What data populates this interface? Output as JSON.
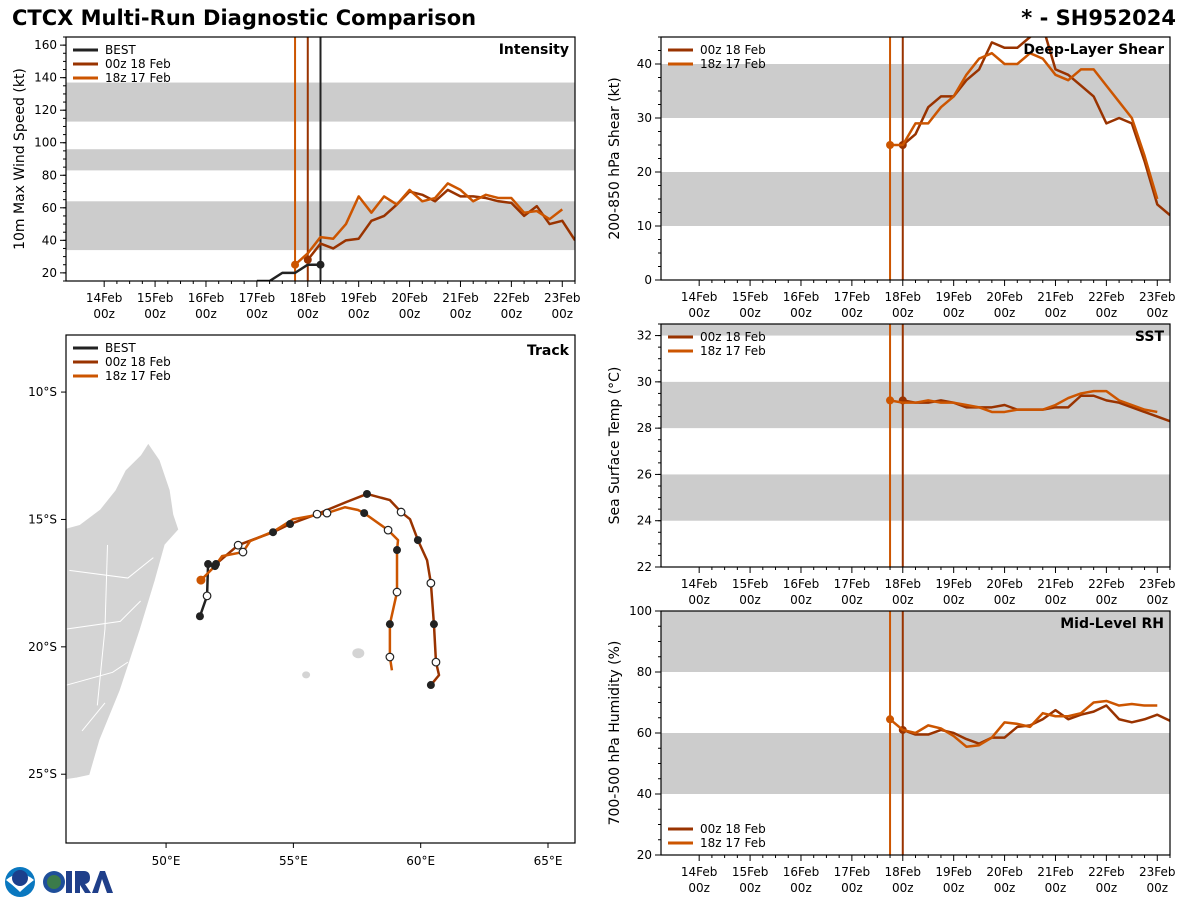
{
  "header": {
    "title": "CTCX Multi-Run Diagnostic Comparison",
    "storm": "* - SH952024"
  },
  "colors": {
    "best": "#222222",
    "run_00z18": "#993300",
    "run_18z17": "#cc5500",
    "band": "#cccccc",
    "land": "#d4d4d4"
  },
  "logo": {
    "text": "CIRA",
    "icon": "noaa-cira-logo"
  },
  "chart_data": [
    {
      "id": "intensity",
      "type": "line",
      "title": "Intensity",
      "ylabel": "10m Max Wind Speed (kt)",
      "ylim": [
        15,
        165
      ],
      "yticks": [
        20,
        40,
        60,
        80,
        100,
        120,
        140,
        160
      ],
      "xlim": [
        "2024-02-13T06Z",
        "2024-02-23T06Z"
      ],
      "xticks": [
        "14Feb\n00z",
        "15Feb\n00z",
        "16Feb\n00z",
        "17Feb\n00z",
        "18Feb\n00z",
        "19Feb\n00z",
        "20Feb\n00z",
        "21Feb\n00z",
        "22Feb\n00z",
        "23Feb\n00z"
      ],
      "bands": [
        [
          34,
          64
        ],
        [
          83,
          96
        ],
        [
          113,
          137
        ]
      ],
      "legend": "top-left",
      "init_lines": [
        {
          "series": "18z 17 Feb",
          "time": "2024-02-17T18Z"
        },
        {
          "series": "00z 18 Feb",
          "time": "2024-02-18T00Z"
        },
        {
          "series": "BEST",
          "time": "2024-02-18T06Z"
        }
      ],
      "series": [
        {
          "name": "BEST",
          "color_key": "best",
          "start": "2024-02-17T00Z",
          "step_hours": 6,
          "values": [
            15,
            15,
            20,
            20,
            25,
            25
          ]
        },
        {
          "name": "00z 18 Feb",
          "color_key": "run_00z18",
          "start": "2024-02-18T00Z",
          "step_hours": 6,
          "values": [
            28,
            38,
            35,
            40,
            41,
            52,
            55,
            62,
            70,
            68,
            64,
            71,
            67,
            67,
            66,
            64,
            63,
            55,
            61,
            50,
            52,
            40
          ]
        },
        {
          "name": "18z 17 Feb",
          "color_key": "run_18z17",
          "start": "2024-02-17T18Z",
          "step_hours": 6,
          "values": [
            25,
            32,
            42,
            41,
            50,
            67,
            57,
            67,
            62,
            71,
            64,
            66,
            75,
            71,
            64,
            68,
            66,
            66,
            57,
            58,
            53,
            59
          ]
        }
      ]
    },
    {
      "id": "shear",
      "type": "line",
      "title": "Deep-Layer Shear",
      "ylabel": "200-850 hPa Shear (kt)",
      "ylim": [
        0,
        45
      ],
      "yticks": [
        0,
        10,
        20,
        30,
        40
      ],
      "xlim": [
        "2024-02-13T06Z",
        "2024-02-23T06Z"
      ],
      "xticks": [
        "14Feb\n00z",
        "15Feb\n00z",
        "16Feb\n00z",
        "17Feb\n00z",
        "18Feb\n00z",
        "19Feb\n00z",
        "20Feb\n00z",
        "21Feb\n00z",
        "22Feb\n00z",
        "23Feb\n00z"
      ],
      "bands": [
        [
          10,
          20
        ],
        [
          30,
          40
        ]
      ],
      "legend": "top-left",
      "init_lines": [
        {
          "series": "18z 17 Feb",
          "time": "2024-02-17T18Z"
        },
        {
          "series": "00z 18 Feb",
          "time": "2024-02-18T00Z"
        }
      ],
      "series": [
        {
          "name": "00z 18 Feb",
          "color_key": "run_00z18",
          "start": "2024-02-18T00Z",
          "step_hours": 6,
          "values": [
            25,
            27,
            32,
            34,
            34,
            37,
            39,
            44,
            43,
            43,
            45,
            47,
            39,
            38,
            36,
            34,
            29,
            30,
            29,
            22,
            14,
            12
          ]
        },
        {
          "name": "18z 17 Feb",
          "color_key": "run_18z17",
          "start": "2024-02-17T18Z",
          "step_hours": 6,
          "values": [
            25,
            25,
            29,
            29,
            32,
            34,
            38,
            41,
            42,
            40,
            40,
            42,
            41,
            38,
            37,
            39,
            39,
            36,
            33,
            30,
            23,
            15
          ]
        }
      ]
    },
    {
      "id": "sst",
      "type": "line",
      "title": "SST",
      "ylabel": "Sea Surface Temp (°C)",
      "ylim": [
        22,
        32.5
      ],
      "yticks": [
        22,
        24,
        26,
        28,
        30,
        32
      ],
      "xlim": [
        "2024-02-13T06Z",
        "2024-02-23T06Z"
      ],
      "xticks": [
        "14Feb\n00z",
        "15Feb\n00z",
        "16Feb\n00z",
        "17Feb\n00z",
        "18Feb\n00z",
        "19Feb\n00z",
        "20Feb\n00z",
        "21Feb\n00z",
        "22Feb\n00z",
        "23Feb\n00z"
      ],
      "bands": [
        [
          24,
          26
        ],
        [
          28,
          30
        ],
        [
          32,
          32.5
        ]
      ],
      "legend": "top-left",
      "init_lines": [
        {
          "series": "18z 17 Feb",
          "time": "2024-02-17T18Z"
        },
        {
          "series": "00z 18 Feb",
          "time": "2024-02-18T00Z"
        }
      ],
      "series": [
        {
          "name": "00z 18 Feb",
          "color_key": "run_00z18",
          "start": "2024-02-18T00Z",
          "step_hours": 6,
          "values": [
            29.2,
            29.1,
            29.1,
            29.2,
            29.1,
            28.9,
            28.9,
            28.9,
            29.0,
            28.8,
            28.8,
            28.8,
            28.9,
            28.9,
            29.4,
            29.4,
            29.2,
            29.1,
            28.9,
            28.7,
            28.5,
            28.3
          ]
        },
        {
          "name": "18z 17 Feb",
          "color_key": "run_18z17",
          "start": "2024-02-17T18Z",
          "step_hours": 6,
          "values": [
            29.2,
            29.1,
            29.1,
            29.2,
            29.1,
            29.1,
            29.0,
            28.9,
            28.7,
            28.7,
            28.8,
            28.8,
            28.8,
            29.0,
            29.3,
            29.5,
            29.6,
            29.6,
            29.2,
            29.0,
            28.8,
            28.7
          ]
        }
      ]
    },
    {
      "id": "rh",
      "type": "line",
      "title": "Mid-Level RH",
      "ylabel": "700-500 hPa Humidity (%)",
      "ylim": [
        20,
        100
      ],
      "yticks": [
        20,
        40,
        60,
        80,
        100
      ],
      "xlim": [
        "2024-02-13T06Z",
        "2024-02-23T06Z"
      ],
      "xticks": [
        "14Feb\n00z",
        "15Feb\n00z",
        "16Feb\n00z",
        "17Feb\n00z",
        "18Feb\n00z",
        "19Feb\n00z",
        "20Feb\n00z",
        "21Feb\n00z",
        "22Feb\n00z",
        "23Feb\n00z"
      ],
      "bands": [
        [
          40,
          60
        ],
        [
          80,
          100
        ]
      ],
      "legend": "bottom-left",
      "init_lines": [
        {
          "series": "18z 17 Feb",
          "time": "2024-02-17T18Z"
        },
        {
          "series": "00z 18 Feb",
          "time": "2024-02-18T00Z"
        }
      ],
      "series": [
        {
          "name": "00z 18 Feb",
          "color_key": "run_00z18",
          "start": "2024-02-18T00Z",
          "step_hours": 6,
          "values": [
            61,
            59.5,
            59.5,
            61,
            60,
            58,
            56.5,
            58.5,
            58.5,
            62,
            62.5,
            64.5,
            67.5,
            64.5,
            66,
            67,
            69,
            64.5,
            63.5,
            64.5,
            66,
            64
          ]
        },
        {
          "name": "18z 17 Feb",
          "color_key": "run_18z17",
          "start": "2024-02-17T18Z",
          "step_hours": 6,
          "values": [
            64.5,
            61,
            60,
            62.5,
            61.5,
            59,
            55.5,
            56,
            58.5,
            63.5,
            63,
            62,
            66.5,
            65.5,
            65.5,
            66.5,
            70,
            70.5,
            69,
            69.5,
            69,
            69
          ]
        }
      ]
    },
    {
      "id": "track",
      "type": "map",
      "title": "Track",
      "lon_range": [
        46.07,
        66.06
      ],
      "lat_range": [
        -27.7,
        -7.76
      ],
      "lon_ticks": [
        {
          "v": 50,
          "label": "50°E"
        },
        {
          "v": 55,
          "label": "55°E"
        },
        {
          "v": 60,
          "label": "60°E"
        },
        {
          "v": 65,
          "label": "65°E"
        }
      ],
      "lat_ticks": [
        {
          "v": -10,
          "label": "10°S"
        },
        {
          "v": -15,
          "label": "15°S"
        },
        {
          "v": -20,
          "label": "20°S"
        },
        {
          "v": -25,
          "label": "25°S"
        }
      ],
      "legend": "top-left",
      "series": [
        {
          "name": "BEST",
          "color_key": "best",
          "points": [
            [
              51.33,
              -18.8,
              "f"
            ],
            [
              51.61,
              -18.0,
              "o"
            ],
            [
              51.65,
              -16.75,
              "f"
            ]
          ]
        },
        {
          "name": "00z 18 Feb",
          "color_key": "run_00z18",
          "points": [
            [
              51.96,
              -16.75,
              "f"
            ],
            [
              52.83,
              -16.01,
              "o"
            ],
            [
              54.2,
              -15.5,
              "f"
            ],
            [
              54.87,
              -15.18,
              "f"
            ],
            [
              55.93,
              -14.79,
              "o"
            ],
            [
              57.07,
              -14.32,
              ""
            ],
            [
              57.89,
              -14.0,
              "f"
            ],
            [
              58.79,
              -14.24,
              ""
            ],
            [
              59.23,
              -14.71,
              "o"
            ],
            [
              59.58,
              -14.99,
              ""
            ],
            [
              59.89,
              -15.81,
              "f"
            ],
            [
              60.25,
              -16.6,
              ""
            ],
            [
              60.4,
              -17.5,
              "o"
            ],
            [
              60.52,
              -19.11,
              "f"
            ],
            [
              60.6,
              -20.6,
              "o"
            ],
            [
              60.72,
              -21.11,
              ""
            ],
            [
              60.4,
              -21.5,
              "f"
            ]
          ]
        },
        {
          "name": "18z 17 Feb",
          "color_key": "run_18z17",
          "points": [
            [
              51.37,
              -17.38,
              "c"
            ],
            [
              51.92,
              -16.83,
              "f"
            ],
            [
              52.2,
              -16.44,
              ""
            ],
            [
              53.02,
              -16.28,
              "o"
            ],
            [
              53.3,
              -15.85,
              ""
            ],
            [
              54.24,
              -15.46,
              ""
            ],
            [
              54.99,
              -14.99,
              ""
            ],
            [
              56.32,
              -14.75,
              "o"
            ],
            [
              57.03,
              -14.52,
              ""
            ],
            [
              57.54,
              -14.63,
              ""
            ],
            [
              57.78,
              -14.75,
              "f"
            ],
            [
              58.72,
              -15.42,
              "o"
            ],
            [
              59.11,
              -15.81,
              ""
            ],
            [
              59.07,
              -16.2,
              "f"
            ],
            [
              59.07,
              -17.85,
              "o"
            ],
            [
              58.79,
              -19.11,
              "f"
            ],
            [
              58.79,
              -20.4,
              "o"
            ],
            [
              58.87,
              -20.92,
              ""
            ]
          ]
        }
      ]
    }
  ]
}
